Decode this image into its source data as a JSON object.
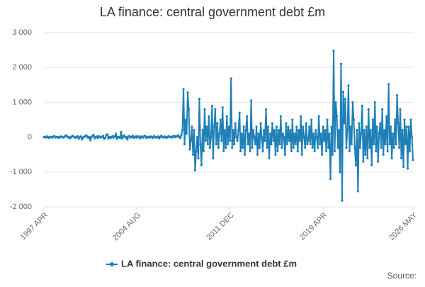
{
  "chart_data": {
    "type": "line",
    "title": "LA finance: central government debt £m",
    "categories": [
      "1997 APR",
      null,
      null,
      null,
      null,
      null,
      null,
      null,
      null,
      null,
      null,
      null,
      null,
      null,
      null,
      null,
      null,
      null,
      null,
      null,
      null,
      null,
      null,
      null,
      null,
      null,
      null,
      null,
      null,
      null,
      null,
      null,
      null,
      null,
      null,
      null,
      null,
      null,
      null,
      null,
      null,
      null,
      null,
      null,
      null,
      null,
      null,
      null,
      null,
      null,
      null,
      null,
      null,
      null,
      null,
      null,
      null,
      null,
      null,
      null,
      null,
      null,
      null,
      null,
      null,
      null,
      null,
      null,
      null,
      null,
      null,
      null,
      null,
      null,
      null,
      null,
      null,
      null,
      null,
      null,
      null,
      null,
      null,
      null,
      null,
      null,
      null,
      null,
      "2004 AUG",
      null,
      null,
      null,
      null,
      null,
      null,
      null,
      null,
      null,
      null,
      null,
      null,
      null,
      null,
      null,
      null,
      null,
      null,
      null,
      null,
      null,
      null,
      null,
      null,
      null,
      null,
      null,
      null,
      null,
      null,
      null,
      null,
      null,
      null,
      null,
      null,
      null,
      null,
      null,
      null,
      null,
      null,
      null,
      null,
      null,
      null,
      null,
      null,
      null,
      null,
      null,
      null,
      null,
      null,
      null,
      null,
      null,
      null,
      null,
      null,
      null,
      null,
      null,
      null,
      null,
      null,
      null,
      null,
      null,
      null,
      null,
      null,
      null,
      null,
      null,
      null,
      null,
      null,
      null,
      null,
      null,
      null,
      null,
      null,
      null,
      null,
      null,
      "2011 DEC",
      null,
      null,
      null,
      null,
      null,
      null,
      null,
      null,
      null,
      null,
      null,
      null,
      null,
      null,
      null,
      null,
      null,
      null,
      null,
      null,
      null,
      null,
      null,
      null,
      null,
      null,
      null,
      null,
      null,
      null,
      null,
      null,
      null,
      null,
      null,
      null,
      null,
      null,
      null,
      null,
      null,
      null,
      null,
      null,
      null,
      null,
      null,
      null,
      null,
      null,
      null,
      null,
      null,
      null,
      null,
      null,
      null,
      null,
      null,
      null,
      null,
      null,
      null,
      null,
      null,
      null,
      null,
      null,
      null,
      null,
      null,
      null,
      null,
      null,
      null,
      null,
      null,
      null,
      null,
      null,
      null,
      null,
      null,
      null,
      null,
      null,
      null,
      "2019 APR",
      null,
      null,
      null,
      null,
      null,
      null,
      null,
      null,
      null,
      null,
      null,
      null,
      null,
      null,
      null,
      null,
      null,
      null,
      null,
      null,
      null,
      null,
      null,
      null,
      null,
      null,
      null,
      null,
      null,
      null,
      null,
      null,
      null,
      null,
      null,
      null,
      null,
      null,
      null,
      null,
      null,
      null,
      null,
      null,
      null,
      null,
      null,
      null,
      null,
      null,
      null,
      null,
      null,
      null,
      null,
      null,
      null,
      null,
      null,
      null,
      null,
      null,
      null,
      null,
      null,
      null,
      null,
      null,
      null,
      null,
      null,
      null,
      null,
      null,
      null,
      null,
      null,
      null,
      null,
      null,
      null,
      null,
      null,
      null,
      "2026 MAY"
    ],
    "series": [
      {
        "name": "LA finance: central government debt £m",
        "color": "#1f80b8",
        "values": [
          0,
          10,
          -10,
          20,
          0,
          -20,
          10,
          0,
          -10,
          20,
          30,
          -10,
          0,
          10,
          -20,
          0,
          20,
          10,
          -10,
          0,
          30,
          50,
          20,
          -10,
          0,
          -30,
          10,
          40,
          20,
          0,
          -20,
          10,
          30,
          -40,
          0,
          20,
          -60,
          -10,
          10,
          30,
          50,
          20,
          -20,
          0,
          -80,
          10,
          40,
          60,
          -30,
          0,
          20,
          -20,
          30,
          10,
          -10,
          0,
          40,
          -50,
          -20,
          60,
          80,
          -30,
          10,
          -20,
          0,
          30,
          -10,
          20,
          90,
          -40,
          10,
          0,
          -20,
          150,
          -30,
          20,
          50,
          -10,
          0,
          -60,
          30,
          20,
          -10,
          10,
          40,
          -20,
          0,
          20,
          -10,
          30,
          10,
          -30,
          20,
          0,
          -10,
          40,
          30,
          -20,
          0,
          10,
          -10,
          20,
          0,
          -20,
          30,
          10,
          -10,
          0,
          20,
          -30,
          10,
          40,
          0,
          -10,
          20,
          0,
          -20,
          10,
          30,
          0,
          10,
          -10,
          20,
          40,
          0,
          30,
          20,
          50,
          10,
          -20,
          60,
          200,
          1375,
          -200,
          500,
          100,
          1280,
          800,
          -350,
          -100,
          300,
          -500,
          200,
          -950,
          -400,
          0,
          -600,
          1100,
          -200,
          -800,
          200,
          -400,
          800,
          -100,
          300,
          -200,
          600,
          -300,
          0,
          900,
          -600,
          300,
          800,
          -200,
          400,
          -300,
          100,
          500,
          -100,
          850,
          -400,
          200,
          -300,
          600,
          -200,
          300,
          -100,
          1680,
          -300,
          200,
          -200,
          400,
          0,
          -100,
          200,
          700,
          -400,
          100,
          -300,
          300,
          -500,
          200,
          600,
          -200,
          100,
          -400,
          1050,
          -300,
          200,
          0,
          -200,
          300,
          -500,
          100,
          -300,
          400,
          0,
          -400,
          200,
          -100,
          800,
          -300,
          300,
          -600,
          100,
          -200,
          400,
          -100,
          200,
          -500,
          300,
          -400,
          200,
          -200,
          600,
          -300,
          100,
          0,
          -500,
          400,
          -200,
          300,
          -100,
          200,
          -400,
          500,
          -300,
          100,
          -200,
          300,
          -400,
          200,
          -100,
          600,
          -500,
          300,
          0,
          -300,
          400,
          -200,
          -100,
          300,
          -200,
          500,
          -300,
          100,
          -400,
          200,
          0,
          -300,
          600,
          -200,
          100,
          -500,
          300,
          -100,
          200,
          -400,
          500,
          -300,
          100,
          -1200,
          300,
          -500,
          2480,
          -400,
          1000,
          600,
          -300,
          200,
          -1000,
          2100,
          -1820,
          1300,
          400,
          1100,
          -300,
          200,
          1480,
          -400,
          300,
          -200,
          1000,
          500,
          -300,
          -800,
          200,
          -1550,
          400,
          -300,
          100,
          900,
          -700,
          200,
          -500,
          300,
          -600,
          800,
          -300,
          200,
          -800,
          500,
          -200,
          1000,
          -400,
          300,
          -700,
          100,
          400,
          -300,
          800,
          -500,
          200,
          -200,
          600,
          -400,
          1520,
          -200,
          300,
          -600,
          100,
          -300,
          500,
          -200,
          1200,
          400,
          -300,
          800,
          -600,
          200,
          -850,
          500,
          -200,
          300,
          -900,
          300,
          -400,
          500,
          0,
          -650
        ]
      }
    ],
    "ylim": [
      -2000,
      3000
    ],
    "yticks": [
      {
        "value": -2000,
        "label": "-2 000"
      },
      {
        "value": -1000,
        "label": "-1 000"
      },
      0,
      {
        "value": 1000,
        "label": "1 000"
      },
      {
        "value": 2000,
        "label": "2 000"
      },
      {
        "value": 3000,
        "label": "3 000"
      }
    ],
    "grid": true,
    "legend": "bottom",
    "source": "Source:"
  }
}
